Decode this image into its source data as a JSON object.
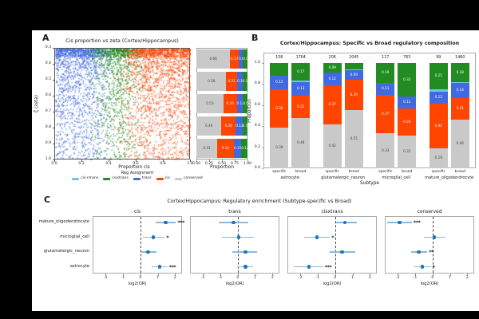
{
  "panels": {
    "a": "A",
    "b": "B",
    "c": "C"
  },
  "colors": {
    "background": "#000000",
    "figure_bg": "#ffffff",
    "conserved": "#c9c9c9",
    "cis": "#ff4500",
    "trans": "#4169e1",
    "cisxtrans": "#228b22",
    "cis_plus_trans": "#6ec6f0",
    "point": "#2077b4",
    "ci": "#8bb8dc",
    "spine_a": "#555555",
    "spine_light": "#aaaaaa",
    "text": "#1a1a1a"
  },
  "chart_data": [
    {
      "id": "scatter",
      "type": "scatter",
      "title": "Cis proportion vs zeta (Cortex/Hippocampus)",
      "xlabel": "Proportion cis",
      "ylabel": "ζ (zeta)",
      "xlim": [
        0.0,
        1.0
      ],
      "ylim_top_to_bottom": [
        0.3,
        1.0
      ],
      "xticks": [
        "0.0",
        "0.2",
        "0.4",
        "0.6",
        "0.8",
        "1.0"
      ],
      "yticks": [
        "0.3",
        "0.4",
        "0.5",
        "0.6",
        "0.7",
        "0.8",
        "0.9",
        "1.0"
      ],
      "n_points_approx": 5000,
      "point_color_rule": "blue(trans) at low proportion cis, green(cisxtrans) mid, red(cis) high, sparse lightblue(cis+trans)",
      "legend": {
        "title": "Reg Assignment",
        "items": [
          {
            "label": "cis+trans",
            "color_key": "cis_plus_trans"
          },
          {
            "label": "cisxtrans",
            "color_key": "cisxtrans"
          },
          {
            "label": "trans",
            "color_key": "trans"
          },
          {
            "label": "cis",
            "color_key": "cis"
          },
          {
            "label": "conserved",
            "color_key": "conserved"
          }
        ]
      }
    },
    {
      "id": "zeta_bin_proportions",
      "type": "bar",
      "orientation": "horizontal_stacked",
      "xlabel": "Proportion",
      "xticks": [
        "0.00",
        "0.25",
        "0.50",
        "0.75",
        "1.00"
      ],
      "rows": [
        {
          "segments": [
            {
              "name": "conserved",
              "value": 0.66,
              "label": "0.66"
            },
            {
              "name": "cis",
              "value": 0.17,
              "label": "0.17"
            },
            {
              "name": "trans",
              "value": 0.08,
              "label": "0.08"
            },
            {
              "name": "cisxtrans",
              "value": 0.09,
              "label": "0.09"
            }
          ]
        },
        {
          "segments": [
            {
              "name": "conserved",
              "value": 0.58,
              "label": "0.58"
            },
            {
              "name": "cis",
              "value": 0.21,
              "label": "0.21"
            },
            {
              "name": "trans",
              "value": 0.1,
              "label": "0.10"
            },
            {
              "name": "cisxtrans",
              "value": 0.1,
              "label": "0.10"
            }
          ]
        },
        {
          "segments": [
            {
              "name": "conserved",
              "value": 0.53,
              "label": "0.53"
            },
            {
              "name": "cis",
              "value": 0.26,
              "label": "0.26"
            },
            {
              "name": "trans",
              "value": 0.12,
              "label": "0.12"
            },
            {
              "name": "cisxtrans",
              "value": 0.09,
              "label": "0.09"
            }
          ]
        },
        {
          "segments": [
            {
              "name": "conserved",
              "value": 0.49,
              "label": "0.49"
            },
            {
              "name": "cis",
              "value": 0.28,
              "label": "0.28"
            },
            {
              "name": "trans",
              "value": 0.13,
              "label": "0.13"
            },
            {
              "name": "cisxtrans",
              "value": 0.1,
              "label": "0.10"
            }
          ]
        },
        {
          "segments": [
            {
              "name": "conserved",
              "value": 0.41,
              "label": "0.41"
            },
            {
              "name": "cis",
              "value": 0.32,
              "label": "0.32"
            },
            {
              "name": "trans",
              "value": 0.15,
              "label": "0.15"
            },
            {
              "name": "cisxtrans",
              "value": 0.12,
              "label": "0.12"
            }
          ]
        }
      ]
    },
    {
      "id": "composition",
      "type": "bar",
      "orientation": "vertical_stacked",
      "title": "Cortex/Hippocampus: Specific vs Broad regulatory composition",
      "xlabel": "Subtype",
      "ylabel": "Proportion",
      "yticks": [
        "0.0",
        "0.2",
        "0.4",
        "0.6",
        "0.8",
        "1.0"
      ],
      "groups": [
        {
          "name": "astrocyte",
          "bars": [
            {
              "name": "specific",
              "count": "158",
              "segments": [
                {
                  "name": "conserved",
                  "value": 0.39,
                  "label": "0.39"
                },
                {
                  "name": "cis",
                  "value": 0.36,
                  "label": "0.36"
                },
                {
                  "name": "trans",
                  "value": 0.13,
                  "label": "0.13"
                },
                {
                  "name": "cisxtrans",
                  "value": 0.12,
                  "label": ""
                }
              ]
            },
            {
              "name": "broad",
              "count": "1764",
              "segments": [
                {
                  "name": "conserved",
                  "value": 0.48,
                  "label": "0.48"
                },
                {
                  "name": "cis",
                  "value": 0.21,
                  "label": "0.21"
                },
                {
                  "name": "trans",
                  "value": 0.13,
                  "label": "0.13"
                },
                {
                  "name": "cis+trans",
                  "value": 0.01,
                  "label": ""
                },
                {
                  "name": "cisxtrans",
                  "value": 0.17,
                  "label": "0.17"
                }
              ]
            }
          ]
        },
        {
          "name": "glutamatergic_neuron",
          "bars": [
            {
              "name": "specific",
              "count": "206",
              "segments": [
                {
                  "name": "conserved",
                  "value": 0.42,
                  "label": "0.42"
                },
                {
                  "name": "cis",
                  "value": 0.37,
                  "label": "0.37"
                },
                {
                  "name": "trans",
                  "value": 0.12,
                  "label": "0.12"
                },
                {
                  "name": "cisxtrans",
                  "value": 0.09,
                  "label": "0.09"
                }
              ]
            },
            {
              "name": "broad",
              "count": "2045",
              "segments": [
                {
                  "name": "conserved",
                  "value": 0.55,
                  "label": "0.55"
                },
                {
                  "name": "cis",
                  "value": 0.29,
                  "label": "0.29"
                },
                {
                  "name": "trans",
                  "value": 0.09,
                  "label": "0.09"
                },
                {
                  "name": "cis+trans",
                  "value": 0.01,
                  "label": ""
                },
                {
                  "name": "cisxtrans",
                  "value": 0.06,
                  "label": ""
                }
              ]
            }
          ]
        },
        {
          "name": "microglial_cell",
          "bars": [
            {
              "name": "specific",
              "count": "117",
              "segments": [
                {
                  "name": "conserved",
                  "value": 0.33,
                  "label": "0.33"
                },
                {
                  "name": "cis",
                  "value": 0.37,
                  "label": "0.37"
                },
                {
                  "name": "trans",
                  "value": 0.11,
                  "label": "0.11"
                },
                {
                  "name": "cisxtrans",
                  "value": 0.19,
                  "label": "0.19"
                }
              ]
            },
            {
              "name": "broad",
              "count": "763",
              "segments": [
                {
                  "name": "conserved",
                  "value": 0.31,
                  "label": "0.31"
                },
                {
                  "name": "cis",
                  "value": 0.26,
                  "label": "0.26"
                },
                {
                  "name": "trans",
                  "value": 0.11,
                  "label": "0.11"
                },
                {
                  "name": "cisxtrans",
                  "value": 0.32,
                  "label": "0.32"
                }
              ]
            }
          ]
        },
        {
          "name": "mature_oligodendrocyte",
          "bars": [
            {
              "name": "specific",
              "count": "99",
              "segments": [
                {
                  "name": "conserved",
                  "value": 0.19,
                  "label": "0.19"
                },
                {
                  "name": "cis",
                  "value": 0.42,
                  "label": "0.42"
                },
                {
                  "name": "trans",
                  "value": 0.12,
                  "label": "0.12"
                },
                {
                  "name": "cis+trans",
                  "value": 0.02,
                  "label": ""
                },
                {
                  "name": "cisxtrans",
                  "value": 0.25,
                  "label": "0.25"
                }
              ]
            },
            {
              "name": "broad",
              "count": "1460",
              "segments": [
                {
                  "name": "conserved",
                  "value": 0.46,
                  "label": "0.46"
                },
                {
                  "name": "cis",
                  "value": 0.21,
                  "label": "0.21"
                },
                {
                  "name": "trans",
                  "value": 0.14,
                  "label": "0.14"
                },
                {
                  "name": "cis+trans",
                  "value": 0.01,
                  "label": ""
                },
                {
                  "name": "cisxtrans",
                  "value": 0.18,
                  "label": "0.18"
                }
              ]
            }
          ]
        }
      ]
    },
    {
      "id": "enrichment",
      "type": "forest",
      "title": "Cortex/Hippocampus: Regulatory enrichment (Subtype-specific vs Broad)",
      "xlabel": "log2(OR)",
      "categories": [
        "mature_oligodendrocyte",
        "microglial_cell",
        "glutamatergic_neuron",
        "astrocyte"
      ],
      "xticks": [
        "-2",
        "-1",
        "0",
        "1",
        "2"
      ],
      "xlim": [
        -2.75,
        2.4
      ],
      "facets": [
        {
          "name": "cis",
          "rows": [
            {
              "x": 1.45,
              "lo": 0.9,
              "hi": 2.05,
              "sig": "***"
            },
            {
              "x": 0.75,
              "lo": 0.15,
              "hi": 1.4,
              "sig": "*"
            },
            {
              "x": 0.45,
              "lo": 0.05,
              "hi": 0.95,
              "sig": ""
            },
            {
              "x": 1.1,
              "lo": 0.65,
              "hi": 1.55,
              "sig": "***"
            }
          ]
        },
        {
          "name": "trans",
          "rows": [
            {
              "x": -0.25,
              "lo": -1.1,
              "hi": 0.6,
              "sig": ""
            },
            {
              "x": 0.05,
              "lo": -0.9,
              "hi": 0.95,
              "sig": ""
            },
            {
              "x": 0.45,
              "lo": -0.3,
              "hi": 1.1,
              "sig": ""
            },
            {
              "x": 0.45,
              "lo": -0.05,
              "hi": 0.9,
              "sig": ""
            }
          ]
        },
        {
          "name": "cisxtrans",
          "rows": [
            {
              "x": 0.55,
              "lo": 0.05,
              "hi": 1.25,
              "sig": ""
            },
            {
              "x": -1.05,
              "lo": -1.8,
              "hi": -0.3,
              "sig": "*"
            },
            {
              "x": 0.4,
              "lo": -0.3,
              "hi": 1.15,
              "sig": ""
            },
            {
              "x": -1.5,
              "lo": -2.4,
              "hi": -0.7,
              "sig": "***"
            }
          ]
        },
        {
          "name": "conserved",
          "rows": [
            {
              "x": -1.9,
              "lo": -2.6,
              "hi": -1.2,
              "sig": "***"
            },
            {
              "x": 0.1,
              "lo": -0.5,
              "hi": 0.75,
              "sig": ""
            },
            {
              "x": -0.8,
              "lo": -1.25,
              "hi": -0.3,
              "sig": "**"
            },
            {
              "x": -0.6,
              "lo": -1.05,
              "hi": -0.1,
              "sig": "*"
            }
          ]
        }
      ]
    }
  ]
}
